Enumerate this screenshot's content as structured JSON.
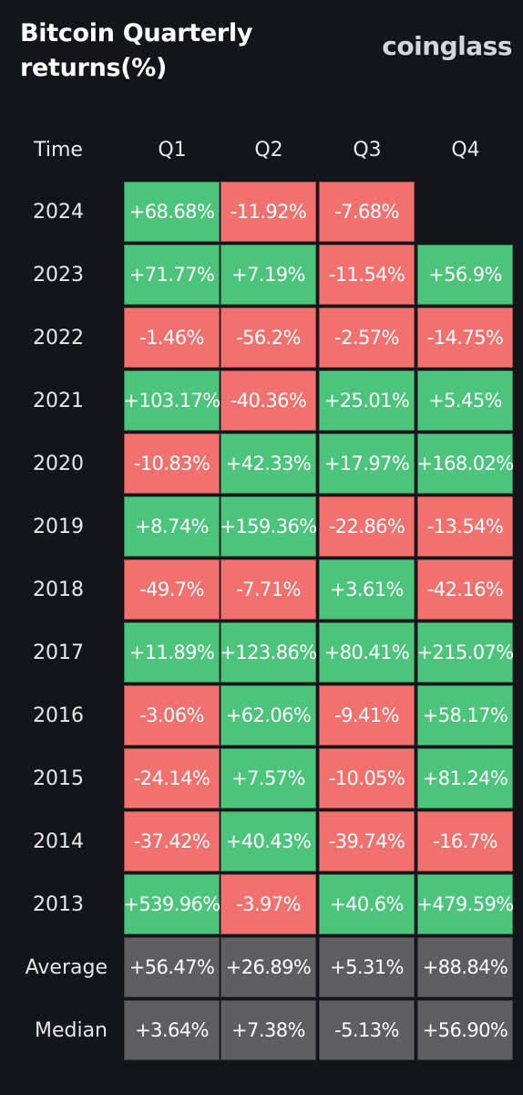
{
  "header": {
    "title": "Bitcoin Quarterly returns(%)",
    "brand": "coinglass"
  },
  "colors": {
    "background": "#14151a",
    "positive": "#4cc47c",
    "negative": "#f0716d",
    "summary": "#5e5e62"
  },
  "table": {
    "time_header": "Time",
    "columns": [
      "Q1",
      "Q2",
      "Q3",
      "Q4"
    ],
    "rows": [
      {
        "label": "2024",
        "values": [
          "+68.68%",
          "-11.92%",
          "-7.68%",
          ""
        ]
      },
      {
        "label": "2023",
        "values": [
          "+71.77%",
          "+7.19%",
          "-11.54%",
          "+56.9%"
        ]
      },
      {
        "label": "2022",
        "values": [
          "-1.46%",
          "-56.2%",
          "-2.57%",
          "-14.75%"
        ]
      },
      {
        "label": "2021",
        "values": [
          "+103.17%",
          "-40.36%",
          "+25.01%",
          "+5.45%"
        ]
      },
      {
        "label": "2020",
        "values": [
          "-10.83%",
          "+42.33%",
          "+17.97%",
          "+168.02%"
        ]
      },
      {
        "label": "2019",
        "values": [
          "+8.74%",
          "+159.36%",
          "-22.86%",
          "-13.54%"
        ]
      },
      {
        "label": "2018",
        "values": [
          "-49.7%",
          "-7.71%",
          "+3.61%",
          "-42.16%"
        ]
      },
      {
        "label": "2017",
        "values": [
          "+11.89%",
          "+123.86%",
          "+80.41%",
          "+215.07%"
        ]
      },
      {
        "label": "2016",
        "values": [
          "-3.06%",
          "+62.06%",
          "-9.41%",
          "+58.17%"
        ]
      },
      {
        "label": "2015",
        "values": [
          "-24.14%",
          "+7.57%",
          "-10.05%",
          "+81.24%"
        ]
      },
      {
        "label": "2014",
        "values": [
          "-37.42%",
          "+40.43%",
          "-39.74%",
          "-16.7%"
        ]
      },
      {
        "label": "2013",
        "values": [
          "+539.96%",
          "-3.97%",
          "+40.6%",
          "+479.59%"
        ]
      }
    ],
    "summary": [
      {
        "label": "Average",
        "values": [
          "+56.47%",
          "+26.89%",
          "+5.31%",
          "+88.84%"
        ]
      },
      {
        "label": "Median",
        "values": [
          "+3.64%",
          "+7.38%",
          "-5.13%",
          "+56.90%"
        ]
      }
    ]
  }
}
